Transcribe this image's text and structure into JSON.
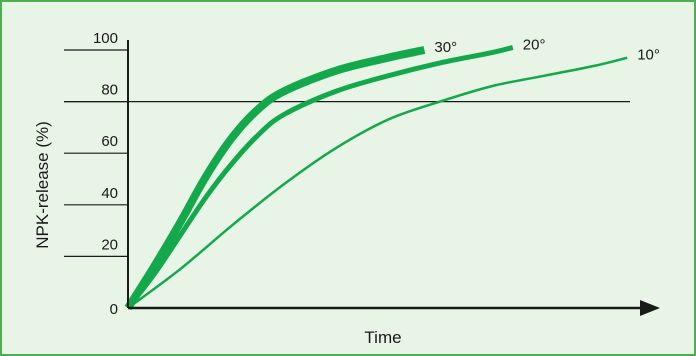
{
  "chart_data": {
    "type": "line",
    "xlabel": "Time",
    "ylabel": "NPK-release (%)",
    "xlim": [
      0,
      100
    ],
    "ylim": [
      0,
      100
    ],
    "yticks": [
      0,
      20,
      40,
      60,
      80,
      100
    ],
    "reference_line": 80,
    "colors": {
      "background": "#e8f4e6",
      "border": "#4caf50",
      "series": "#13a84b",
      "axis": "#1a1a1a"
    },
    "series": [
      {
        "name": "30°",
        "width": 8,
        "points": [
          [
            0,
            0
          ],
          [
            5,
            16
          ],
          [
            10,
            33
          ],
          [
            15,
            51
          ],
          [
            20,
            66
          ],
          [
            25,
            77
          ],
          [
            30,
            84
          ],
          [
            40,
            92
          ],
          [
            50,
            97
          ],
          [
            57,
            100
          ]
        ]
      },
      {
        "name": "20°",
        "width": 5,
        "points": [
          [
            0,
            0
          ],
          [
            5,
            13
          ],
          [
            10,
            28
          ],
          [
            15,
            43
          ],
          [
            20,
            56
          ],
          [
            25,
            67
          ],
          [
            30,
            75
          ],
          [
            40,
            84
          ],
          [
            50,
            90
          ],
          [
            60,
            95
          ],
          [
            70,
            99
          ],
          [
            74,
            101
          ]
        ]
      },
      {
        "name": "10°",
        "width": 2.5,
        "points": [
          [
            0,
            0
          ],
          [
            10,
            15
          ],
          [
            20,
            32
          ],
          [
            30,
            48
          ],
          [
            40,
            62
          ],
          [
            50,
            73
          ],
          [
            60,
            80
          ],
          [
            70,
            86
          ],
          [
            80,
            90
          ],
          [
            90,
            94
          ],
          [
            96,
            97
          ]
        ]
      }
    ]
  }
}
